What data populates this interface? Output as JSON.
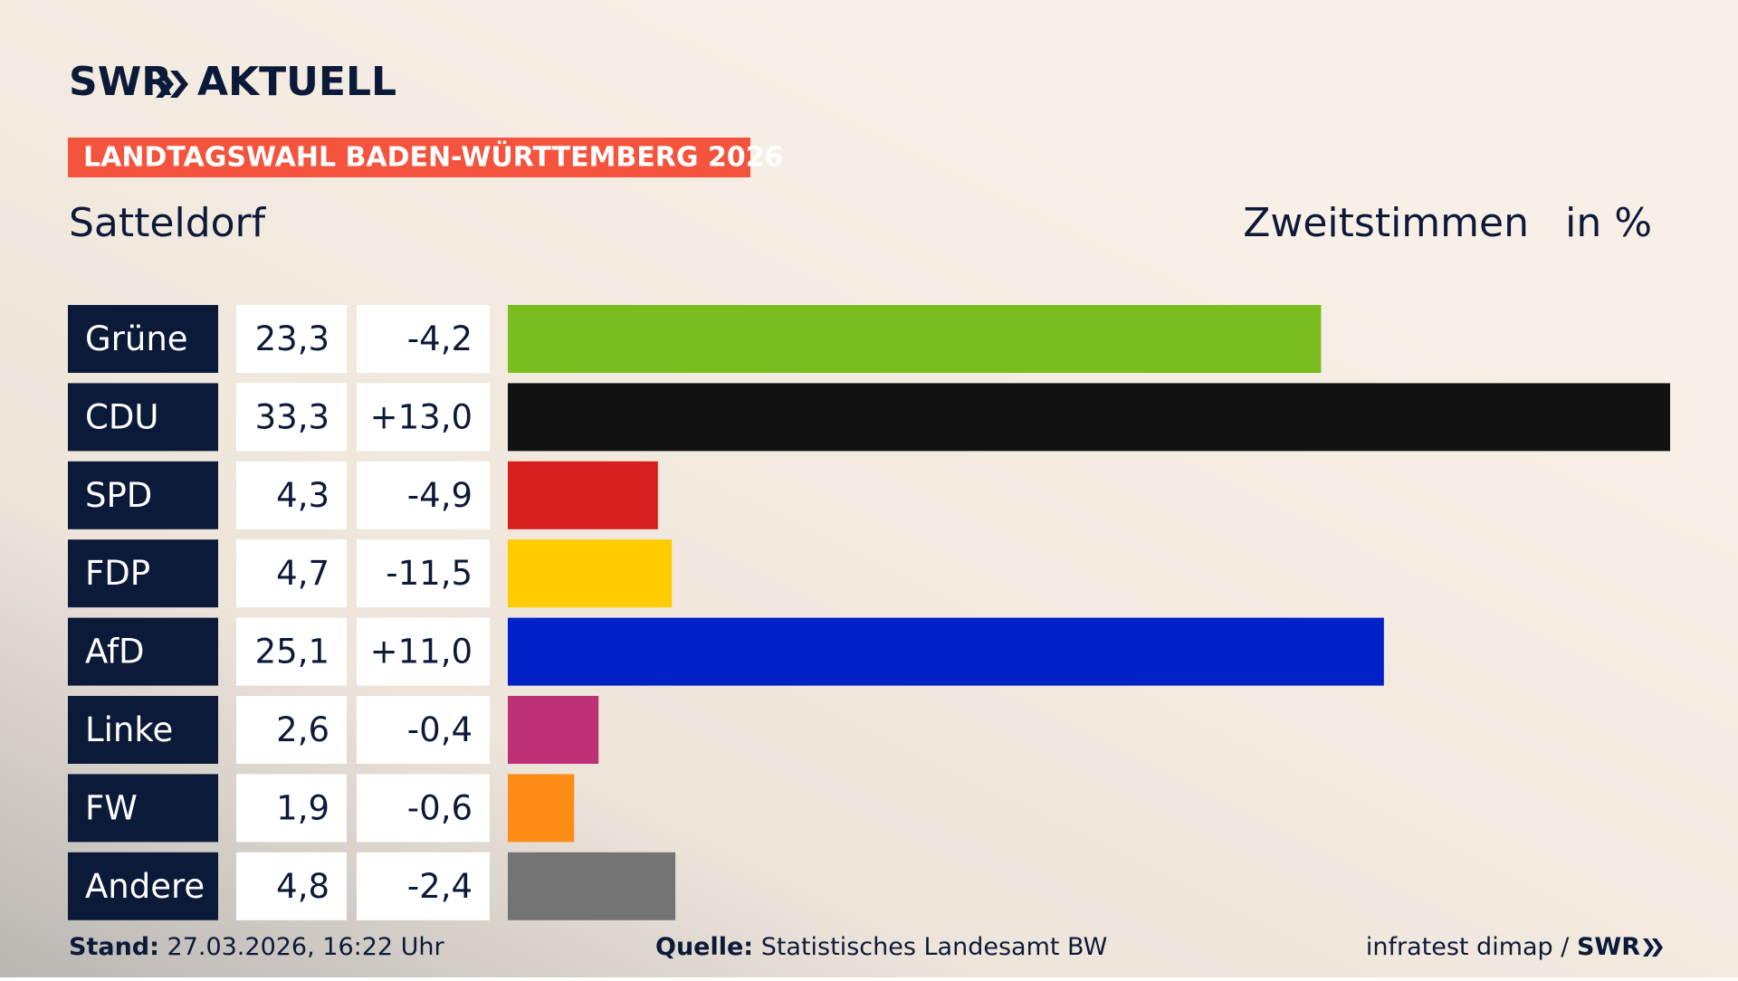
{
  "chart_data": {
    "type": "bar",
    "brand": "SWR",
    "brand_suffix": "AKTUELL",
    "banner": "LANDTAGSWAHL BADEN-WÜRTTEMBERG 2026",
    "title": "Satteldorf",
    "measure": "Zweitstimmen",
    "unit": "in %",
    "categories": [
      "Grüne",
      "CDU",
      "SPD",
      "FDP",
      "AfD",
      "Linke",
      "FW",
      "Andere"
    ],
    "values": [
      23.3,
      33.3,
      4.3,
      4.7,
      25.1,
      2.6,
      1.9,
      4.8
    ],
    "value_labels": [
      "23,3",
      "33,3",
      "4,3",
      "4,7",
      "25,1",
      "2,6",
      "1,9",
      "4,8"
    ],
    "changes": [
      -4.2,
      13.0,
      -4.9,
      -11.5,
      11.0,
      -0.4,
      -0.6,
      -2.4
    ],
    "change_labels": [
      "-4,2",
      "+13,0",
      "-4,9",
      "-11,5",
      "+11,0",
      "-0,4",
      "-0,6",
      "-2,4"
    ],
    "colors": [
      "#78bc1e",
      "#121212",
      "#d71f1d",
      "#ffcc00",
      "#0021c8",
      "#bd3075",
      "#ff8c17",
      "#737373"
    ],
    "footer": {
      "stand_label": "Stand:",
      "stand": "27.03.2026, 16:22 Uhr",
      "source_label": "Quelle:",
      "source": "Statistisches Landesamt BW",
      "credit": "infratest dimap /",
      "credit_brand": "SWR"
    }
  }
}
